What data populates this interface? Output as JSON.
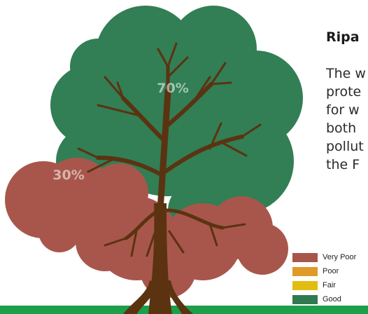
{
  "title": "Ripa",
  "body_lines": [
    "The w",
    "prote",
    "for w",
    "both",
    "pollut",
    "the F"
  ],
  "colors": {
    "very_poor": "#a8564b",
    "poor": "#df9a2a",
    "fair": "#e2bd10",
    "good": "#2f7a51",
    "canopy_good": "#327e55",
    "trunk": "#5b3311",
    "ground": "#1d9e4b",
    "label_text": "#ffffff"
  },
  "chart_data": {
    "type": "pie",
    "title": "",
    "slices": [
      {
        "label": "70%",
        "category": "Good",
        "value": 70
      },
      {
        "label": "30%",
        "category": "Very Poor",
        "value": 30
      }
    ],
    "legend": {
      "placement": "bottom-right",
      "entries": [
        "Very Poor",
        "Poor",
        "Fair",
        "Good"
      ]
    }
  }
}
